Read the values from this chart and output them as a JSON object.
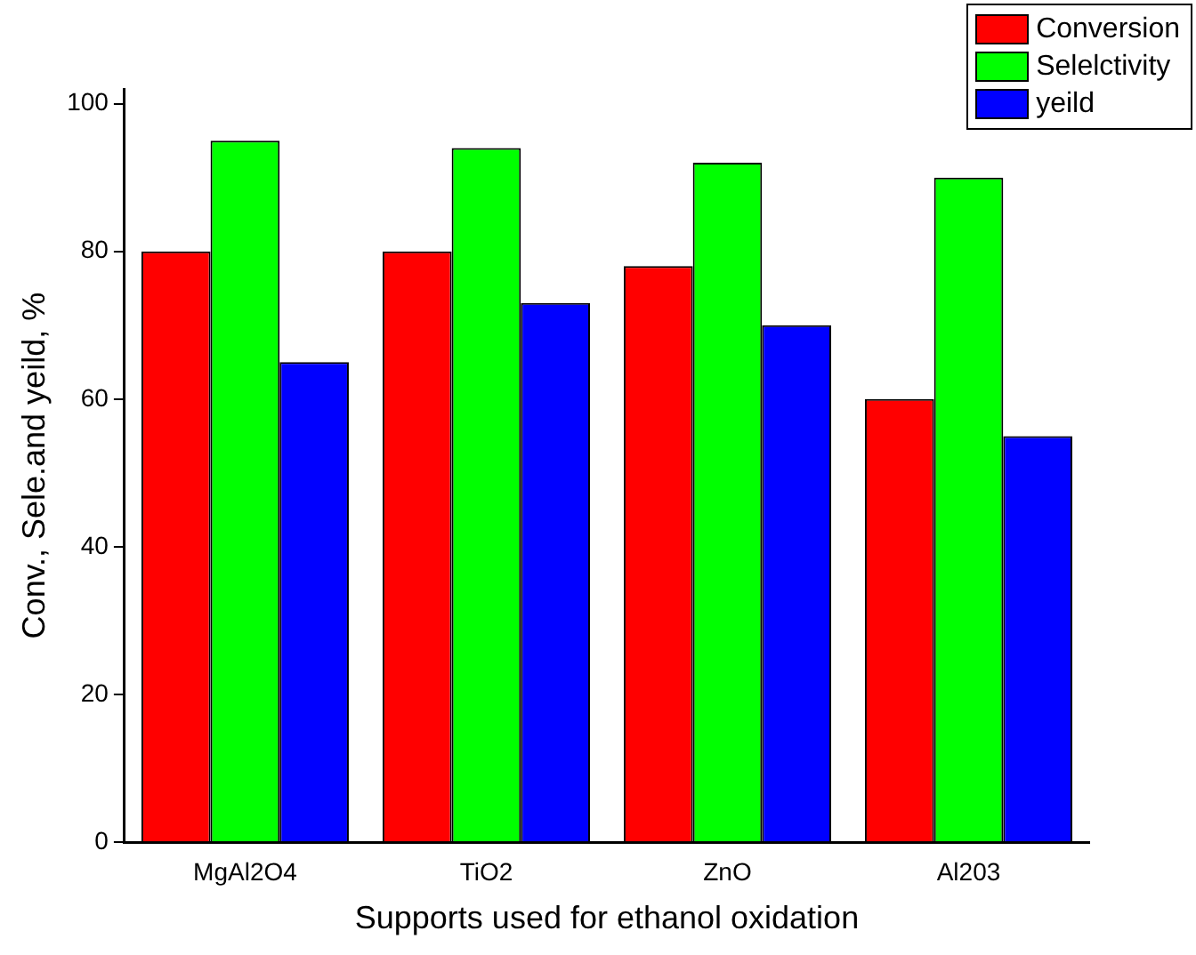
{
  "chart_data": {
    "type": "bar",
    "xlabel": "Supports used for ethanol oxidation",
    "ylabel": "Conv., Sele.and yeild, %",
    "categories": [
      "MgAl2O4",
      "TiO2",
      "ZnO",
      "Al203"
    ],
    "series": [
      {
        "name": "Conversion",
        "color": "#ff0000",
        "values": [
          80,
          80,
          78,
          60
        ]
      },
      {
        "name": "Selelctivity",
        "color": "#00ff00",
        "values": [
          95,
          94,
          92,
          90
        ]
      },
      {
        "name": "yeild",
        "color": "#0000ff",
        "values": [
          65,
          73,
          70,
          55
        ]
      }
    ],
    "ylim": [
      0,
      102
    ],
    "yticks": [
      0,
      20,
      40,
      60,
      80,
      100
    ],
    "grid": false,
    "legend": "top right"
  }
}
